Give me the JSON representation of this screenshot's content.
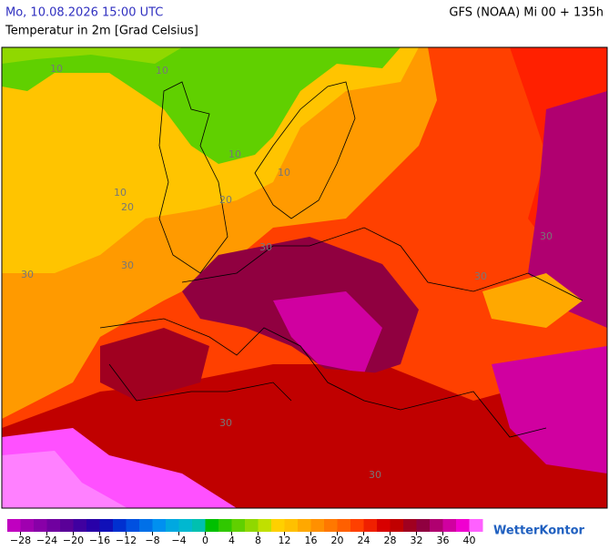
{
  "header": {
    "datetime": "Mo, 10.08.2026 15:00 UTC",
    "model": "GFS (NOAA) Mi 00 + 135h",
    "title": "Temperatur in 2m [Grad Celsius]"
  },
  "map": {
    "contour_labels": [
      "10",
      "10",
      "10",
      "10",
      "10",
      "20",
      "20",
      "30",
      "30",
      "30",
      "30",
      "30",
      "30",
      "30"
    ]
  },
  "legend": {
    "lim": [
      -30,
      42
    ],
    "colors": [
      "#c000c0",
      "#a000b0",
      "#8800a8",
      "#7000a0",
      "#5a0098",
      "#4000a0",
      "#2800a8",
      "#1010b8",
      "#0030d0",
      "#0050e0",
      "#0070e8",
      "#0090f0",
      "#00a8e0",
      "#00b8d0",
      "#00c0b0",
      "#00c000",
      "#30c800",
      "#60d000",
      "#90d800",
      "#c0e000",
      "#ffd000",
      "#ffc000",
      "#ffa800",
      "#ff9000",
      "#ff7800",
      "#ff6000",
      "#ff4000",
      "#f02000",
      "#d80000",
      "#c00000",
      "#a00020",
      "#900040",
      "#b00070",
      "#d000a0",
      "#f000d0",
      "#ff60ff"
    ],
    "ticks": [
      {
        "value": -28,
        "label": "−28"
      },
      {
        "value": -24,
        "label": "−24"
      },
      {
        "value": -20,
        "label": "−20"
      },
      {
        "value": -16,
        "label": "−16"
      },
      {
        "value": -12,
        "label": "−12"
      },
      {
        "value": -8,
        "label": "−8"
      },
      {
        "value": -4,
        "label": "−4"
      },
      0,
      4,
      8,
      12,
      16,
      20,
      24,
      28,
      32,
      36,
      40
    ]
  },
  "logo": "WetterKontor"
}
